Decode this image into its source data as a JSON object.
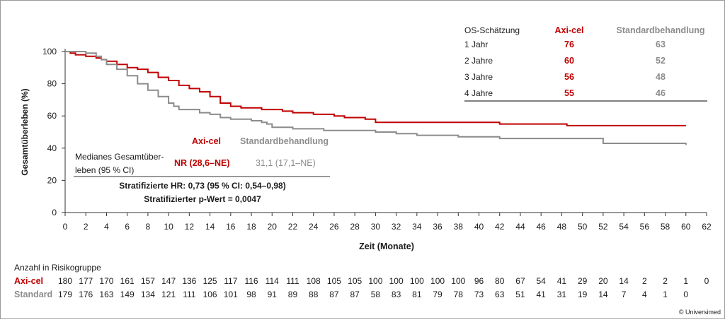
{
  "chart_data": {
    "type": "line",
    "xlabel": "Zeit (Monate)",
    "ylabel": "Gesamtüberleben (%)",
    "xlim": [
      0,
      62
    ],
    "ylim": [
      0,
      100
    ],
    "xticks": [
      "0",
      "2",
      "4",
      "6",
      "8",
      "10",
      "12",
      "14",
      "16",
      "18",
      "20",
      "22",
      "24",
      "26",
      "28",
      "30",
      "32",
      "34",
      "36",
      "38",
      "40",
      "42",
      "44",
      "46",
      "48",
      "50",
      "52",
      "54",
      "56",
      "58",
      "60",
      "62"
    ],
    "yticks": [
      "0",
      "20",
      "40",
      "60",
      "80",
      "100"
    ],
    "grid": false,
    "series": [
      {
        "name": "Axi-cel",
        "color": "#c00000",
        "x": [
          0,
          0.5,
          1,
          1.5,
          2,
          3,
          3.5,
          4,
          5,
          6,
          7,
          8,
          9,
          10,
          11,
          12,
          13,
          14,
          15,
          16,
          17,
          18,
          19,
          20,
          21,
          22,
          23,
          24,
          25,
          26,
          27,
          28,
          29,
          30,
          32,
          34,
          36,
          38,
          40,
          42,
          44,
          46,
          48,
          48.5,
          50,
          52,
          54,
          56,
          58,
          60
        ],
        "y": [
          100,
          99,
          98,
          98,
          97,
          96,
          95,
          94,
          92,
          90,
          89,
          87,
          84,
          82,
          79,
          77,
          75,
          72,
          68,
          66,
          65,
          65,
          64,
          64,
          63,
          62,
          62,
          61,
          61,
          60,
          59,
          59,
          58,
          56,
          56,
          56,
          56,
          56,
          56,
          55,
          55,
          55,
          55,
          54,
          54,
          54,
          54,
          54,
          54,
          54
        ]
      },
      {
        "name": "Standardbehandlung",
        "color": "#8c8c8c",
        "x": [
          0,
          1,
          2,
          2.5,
          3,
          3.5,
          4,
          5,
          6,
          7,
          8,
          9,
          10,
          10.5,
          11,
          12,
          13,
          14,
          15,
          16,
          17,
          18,
          19,
          19.5,
          20,
          22,
          24,
          25,
          26,
          28,
          30,
          32,
          34,
          36,
          38,
          40,
          42,
          44,
          46,
          48,
          50,
          51.5,
          52,
          54,
          56,
          58,
          60
        ],
        "y": [
          100,
          100,
          99,
          99,
          97,
          95,
          92,
          89,
          85,
          80,
          76,
          72,
          68,
          66,
          64,
          64,
          62,
          61,
          59,
          58,
          58,
          57,
          56,
          55,
          53,
          52,
          52,
          51,
          51,
          51,
          50,
          49,
          48,
          48,
          47,
          47,
          46,
          46,
          46,
          46,
          46,
          46,
          43,
          43,
          43,
          43,
          42
        ]
      }
    ],
    "legend_axicel": "Axi-cel",
    "legend_standard": "Standardbehandlung",
    "median": {
      "label_line1": "Medianes Gesamtüber-",
      "label_line2": "leben (95 % CI)",
      "axicel_value": "NR (28,6–NE)",
      "standard_value": "31,1 (17,1–NE)"
    },
    "hr_line": "Stratifizierte HR: 0,73 (95 % CI: 0,54–0,98)",
    "p_line": "Stratifizierter p-Wert = 0,0047",
    "os_table": {
      "header": [
        "OS-Schätzung",
        "Axi-cel",
        "Standardbehandlung"
      ],
      "rows": [
        [
          "1 Jahr",
          "76",
          "63"
        ],
        [
          "2 Jahre",
          "60",
          "52"
        ],
        [
          "3 Jahre",
          "56",
          "48"
        ],
        [
          "4 Jahre",
          "55",
          "46"
        ]
      ]
    },
    "risk": {
      "title": "Anzahl in Risikogruppe",
      "axicel_label": "Axi-cel",
      "standard_label": "Standard",
      "axicel": [
        "180",
        "177",
        "170",
        "161",
        "157",
        "147",
        "136",
        "125",
        "117",
        "116",
        "114",
        "111",
        "108",
        "105",
        "105",
        "100",
        "100",
        "100",
        "100",
        "100",
        "96",
        "80",
        "67",
        "54",
        "41",
        "29",
        "20",
        "14",
        "2",
        "2",
        "1",
        "0"
      ],
      "standard": [
        "179",
        "176",
        "163",
        "149",
        "134",
        "121",
        "111",
        "106",
        "101",
        "98",
        "91",
        "89",
        "88",
        "87",
        "87",
        "58",
        "83",
        "81",
        "79",
        "78",
        "73",
        "63",
        "51",
        "41",
        "31",
        "19",
        "14",
        "7",
        "4",
        "1",
        "0"
      ]
    }
  },
  "copyright": "© Universimed",
  "colors": {
    "axicel": "#c00000",
    "standard": "#8c8c8c",
    "text": "#1a1a1a"
  }
}
